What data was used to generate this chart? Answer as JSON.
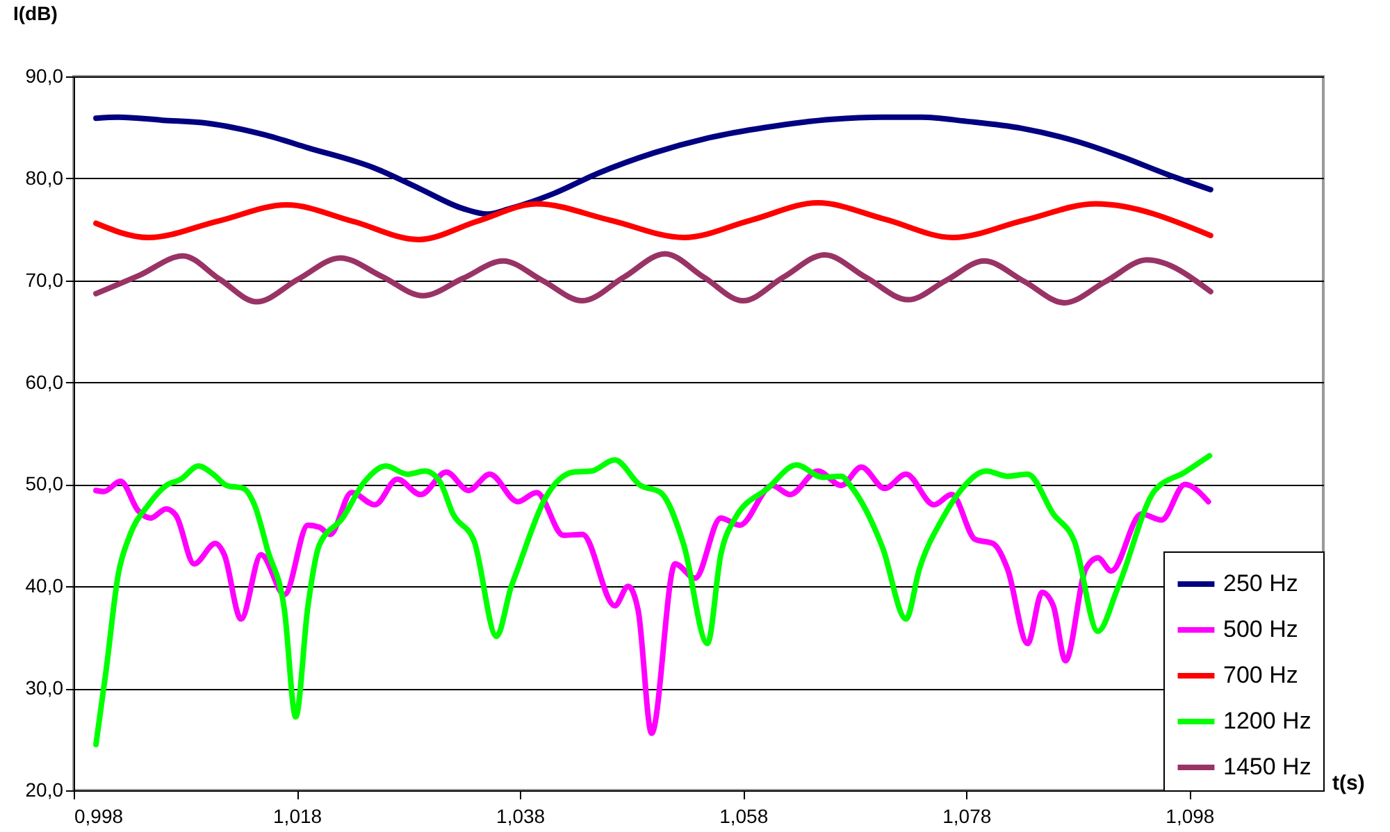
{
  "chart_data": {
    "type": "line",
    "xlabel": "t(s)",
    "ylabel": "I(dB)",
    "xlim": [
      0.998,
      1.11
    ],
    "ylim": [
      20,
      90
    ],
    "xticks": [
      {
        "value": 0.998,
        "label": "0,998"
      },
      {
        "value": 1.018,
        "label": "1,018"
      },
      {
        "value": 1.038,
        "label": "1,038"
      },
      {
        "value": 1.058,
        "label": "1,058"
      },
      {
        "value": 1.078,
        "label": "1,078"
      },
      {
        "value": 1.098,
        "label": "1,098"
      }
    ],
    "yticks": [
      {
        "value": 20,
        "label": "20,0"
      },
      {
        "value": 30,
        "label": "30,0"
      },
      {
        "value": 40,
        "label": "40,0"
      },
      {
        "value": 50,
        "label": "50,0"
      },
      {
        "value": 60,
        "label": "60,0"
      },
      {
        "value": 70,
        "label": "70,0"
      },
      {
        "value": 80,
        "label": "80,0"
      },
      {
        "value": 90,
        "label": "90,0"
      }
    ],
    "grid": "y",
    "legend": "bottom right",
    "series": [
      {
        "name": "250 Hz",
        "color": "#000080",
        "x": [
          1.0,
          1.002,
          1.006,
          1.01,
          1.015,
          1.019,
          1.025,
          1.029,
          1.033,
          1.0351,
          1.037,
          1.041,
          1.045,
          1.05,
          1.055,
          1.06,
          1.066,
          1.0705,
          1.074,
          1.078,
          1.083,
          1.088,
          1.092,
          1.096,
          1.0999
        ],
        "values": [
          85.9,
          86.0,
          85.7,
          85.4,
          84.3,
          83.0,
          81.0,
          79.0,
          77.0,
          76.5,
          77.0,
          78.5,
          80.5,
          82.5,
          84.0,
          85.0,
          85.8,
          86.0,
          86.0,
          85.6,
          84.9,
          83.6,
          82.1,
          80.4,
          78.9
        ]
      },
      {
        "name": "500 Hz",
        "color": "#ff00ff",
        "x": [
          1.0,
          1.0007,
          1.0022,
          1.0038,
          1.0049,
          1.0063,
          1.0072,
          1.0088,
          1.0107,
          1.0115,
          1.013,
          1.0148,
          1.0169,
          1.019,
          1.02,
          1.021,
          1.0229,
          1.025,
          1.027,
          1.0291,
          1.0314,
          1.0334,
          1.0353,
          1.0378,
          1.0395,
          1.0419,
          1.0436,
          1.0465,
          1.0477,
          1.0486,
          1.0498,
          1.0519,
          1.0537,
          1.056,
          1.0577,
          1.0606,
          1.0622,
          1.0647,
          1.0668,
          1.0686,
          1.0707,
          1.0726,
          1.0751,
          1.0767,
          1.0788,
          1.0804,
          1.0817,
          1.0835,
          1.0848,
          1.0858,
          1.0869,
          1.0887,
          1.0898,
          1.091,
          1.0937,
          1.0955,
          1.0976,
          1.0997
        ],
        "values": [
          49.4,
          49.3,
          50.3,
          47.4,
          46.7,
          47.6,
          46.9,
          42.2,
          44.2,
          43.1,
          36.8,
          43.1,
          39.2,
          46.0,
          45.8,
          45.1,
          49.2,
          48.0,
          50.5,
          49.0,
          51.2,
          49.4,
          51.0,
          48.3,
          49.2,
          45.0,
          45.1,
          38.1,
          40.0,
          37.6,
          25.6,
          42.2,
          40.8,
          46.7,
          46.0,
          49.9,
          49.0,
          51.3,
          49.9,
          51.7,
          49.6,
          51.0,
          48.0,
          49.0,
          44.6,
          44.2,
          41.7,
          34.4,
          39.4,
          38.1,
          32.7,
          41.7,
          42.8,
          41.5,
          47.1,
          46.5,
          50.0,
          48.3
        ]
      },
      {
        "name": "700 Hz",
        "color": "#ff0000",
        "x": [
          1.0,
          1.0047,
          1.0109,
          1.0171,
          1.023,
          1.0289,
          1.0342,
          1.0395,
          1.0461,
          1.0527,
          1.0587,
          1.0647,
          1.0707,
          1.0768,
          1.0832,
          1.0896,
          1.0999
        ],
        "values": [
          75.6,
          74.2,
          75.8,
          77.4,
          75.8,
          74.0,
          75.8,
          77.5,
          75.9,
          74.2,
          75.9,
          77.6,
          76.0,
          74.2,
          75.9,
          77.5,
          74.4
        ]
      },
      {
        "name": "1200 Hz",
        "color": "#00ff00",
        "x": [
          1.0,
          1.0009,
          1.002,
          1.003,
          1.0047,
          1.0063,
          1.0076,
          1.0092,
          1.0105,
          1.0117,
          1.0132,
          1.0142,
          1.0154,
          1.0169,
          1.0179,
          1.019,
          1.02,
          1.0221,
          1.0241,
          1.026,
          1.0279,
          1.0295,
          1.0308,
          1.032,
          1.0339,
          1.0359,
          1.0372,
          1.0378,
          1.0403,
          1.0428,
          1.0444,
          1.0465,
          1.0488,
          1.0506,
          1.0527,
          1.0548,
          1.056,
          1.0573,
          1.0602,
          1.0628,
          1.0651,
          1.0668,
          1.0676,
          1.0705,
          1.0726,
          1.0738,
          1.0759,
          1.0775,
          1.0798,
          1.0817,
          1.0835,
          1.0858,
          1.0877,
          1.0898,
          1.0916,
          1.0949,
          1.0976,
          1.0998
        ],
        "values": [
          24.5,
          31.7,
          41.2,
          44.9,
          48.0,
          49.9,
          50.5,
          51.8,
          51.0,
          49.9,
          49.6,
          48.0,
          43.5,
          37.6,
          27.2,
          38.1,
          44.0,
          46.7,
          50.3,
          51.8,
          51.0,
          51.3,
          50.3,
          47.1,
          44.4,
          35.1,
          39.9,
          41.7,
          48.7,
          51.2,
          51.3,
          52.4,
          49.9,
          49.2,
          44.0,
          34.4,
          43.1,
          46.7,
          49.6,
          51.9,
          50.7,
          50.8,
          49.9,
          43.8,
          36.8,
          41.7,
          46.7,
          49.4,
          51.3,
          50.8,
          51.0,
          47.1,
          44.4,
          35.6,
          39.9,
          49.4,
          51.2,
          52.8
        ]
      },
      {
        "name": "1450 Hz",
        "color": "#993366",
        "x": [
          1.0,
          1.0039,
          1.0078,
          1.0111,
          1.0144,
          1.0181,
          1.0219,
          1.0256,
          1.0293,
          1.0329,
          1.0365,
          1.04,
          1.0436,
          1.0473,
          1.051,
          1.0545,
          1.058,
          1.0616,
          1.0653,
          1.069,
          1.0728,
          1.0762,
          1.0796,
          1.0832,
          1.0868,
          1.0905,
          1.0942,
          1.0999
        ],
        "values": [
          68.7,
          70.5,
          72.4,
          70.1,
          67.9,
          70.1,
          72.2,
          70.4,
          68.5,
          70.2,
          71.9,
          70.0,
          68.0,
          70.3,
          72.6,
          70.3,
          68.0,
          70.3,
          72.5,
          70.3,
          68.1,
          70.0,
          71.9,
          69.9,
          67.8,
          69.9,
          72.0,
          68.9
        ]
      }
    ]
  }
}
